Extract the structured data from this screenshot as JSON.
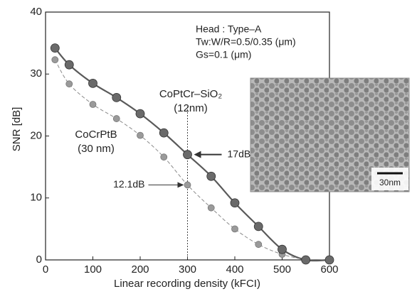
{
  "chart_data": {
    "type": "line",
    "xlabel": "Linear recording density (kFCI)",
    "ylabel": "SNR [dB]",
    "x": [
      20,
      50,
      100,
      150,
      200,
      250,
      300,
      350,
      400,
      450,
      500,
      550,
      600
    ],
    "series": [
      {
        "name": "CoPtCr–SiO₂",
        "subtitle": "(12nm)",
        "color": "#5a5a5a",
        "linestyle": "solid",
        "values": [
          34.2,
          31.5,
          28.5,
          26.2,
          23.6,
          20.5,
          17,
          13.5,
          9.2,
          5.4,
          1.7,
          0,
          0
        ],
        "value_labels": [
          null,
          null,
          null,
          null,
          null,
          null,
          "17dB",
          null,
          null,
          null,
          null,
          null,
          null
        ]
      },
      {
        "name": "CoCrPtB",
        "subtitle": "(30 nm)",
        "color": "#8a8a8a",
        "linestyle": "dashed",
        "values": [
          32.3,
          28.4,
          25.1,
          22.8,
          20.1,
          16.6,
          12.1,
          8.4,
          5.0,
          2.5,
          0.9,
          0,
          null
        ],
        "value_labels": [
          null,
          null,
          null,
          null,
          null,
          null,
          "12.1dB",
          null,
          null,
          null,
          null,
          null,
          null
        ]
      }
    ],
    "annotations": [
      "Head : Type–A",
      "Tw:W/R=0.5/0.35 (μm)",
      "Gs=0.1 (μm)"
    ],
    "inset_scale_label": "30nm",
    "xlim": [
      0,
      600
    ],
    "xticks": [
      0,
      100,
      200,
      300,
      400,
      500,
      600
    ],
    "ylim": [
      0,
      40
    ],
    "yticks": [
      0,
      10,
      20,
      30,
      40
    ]
  }
}
